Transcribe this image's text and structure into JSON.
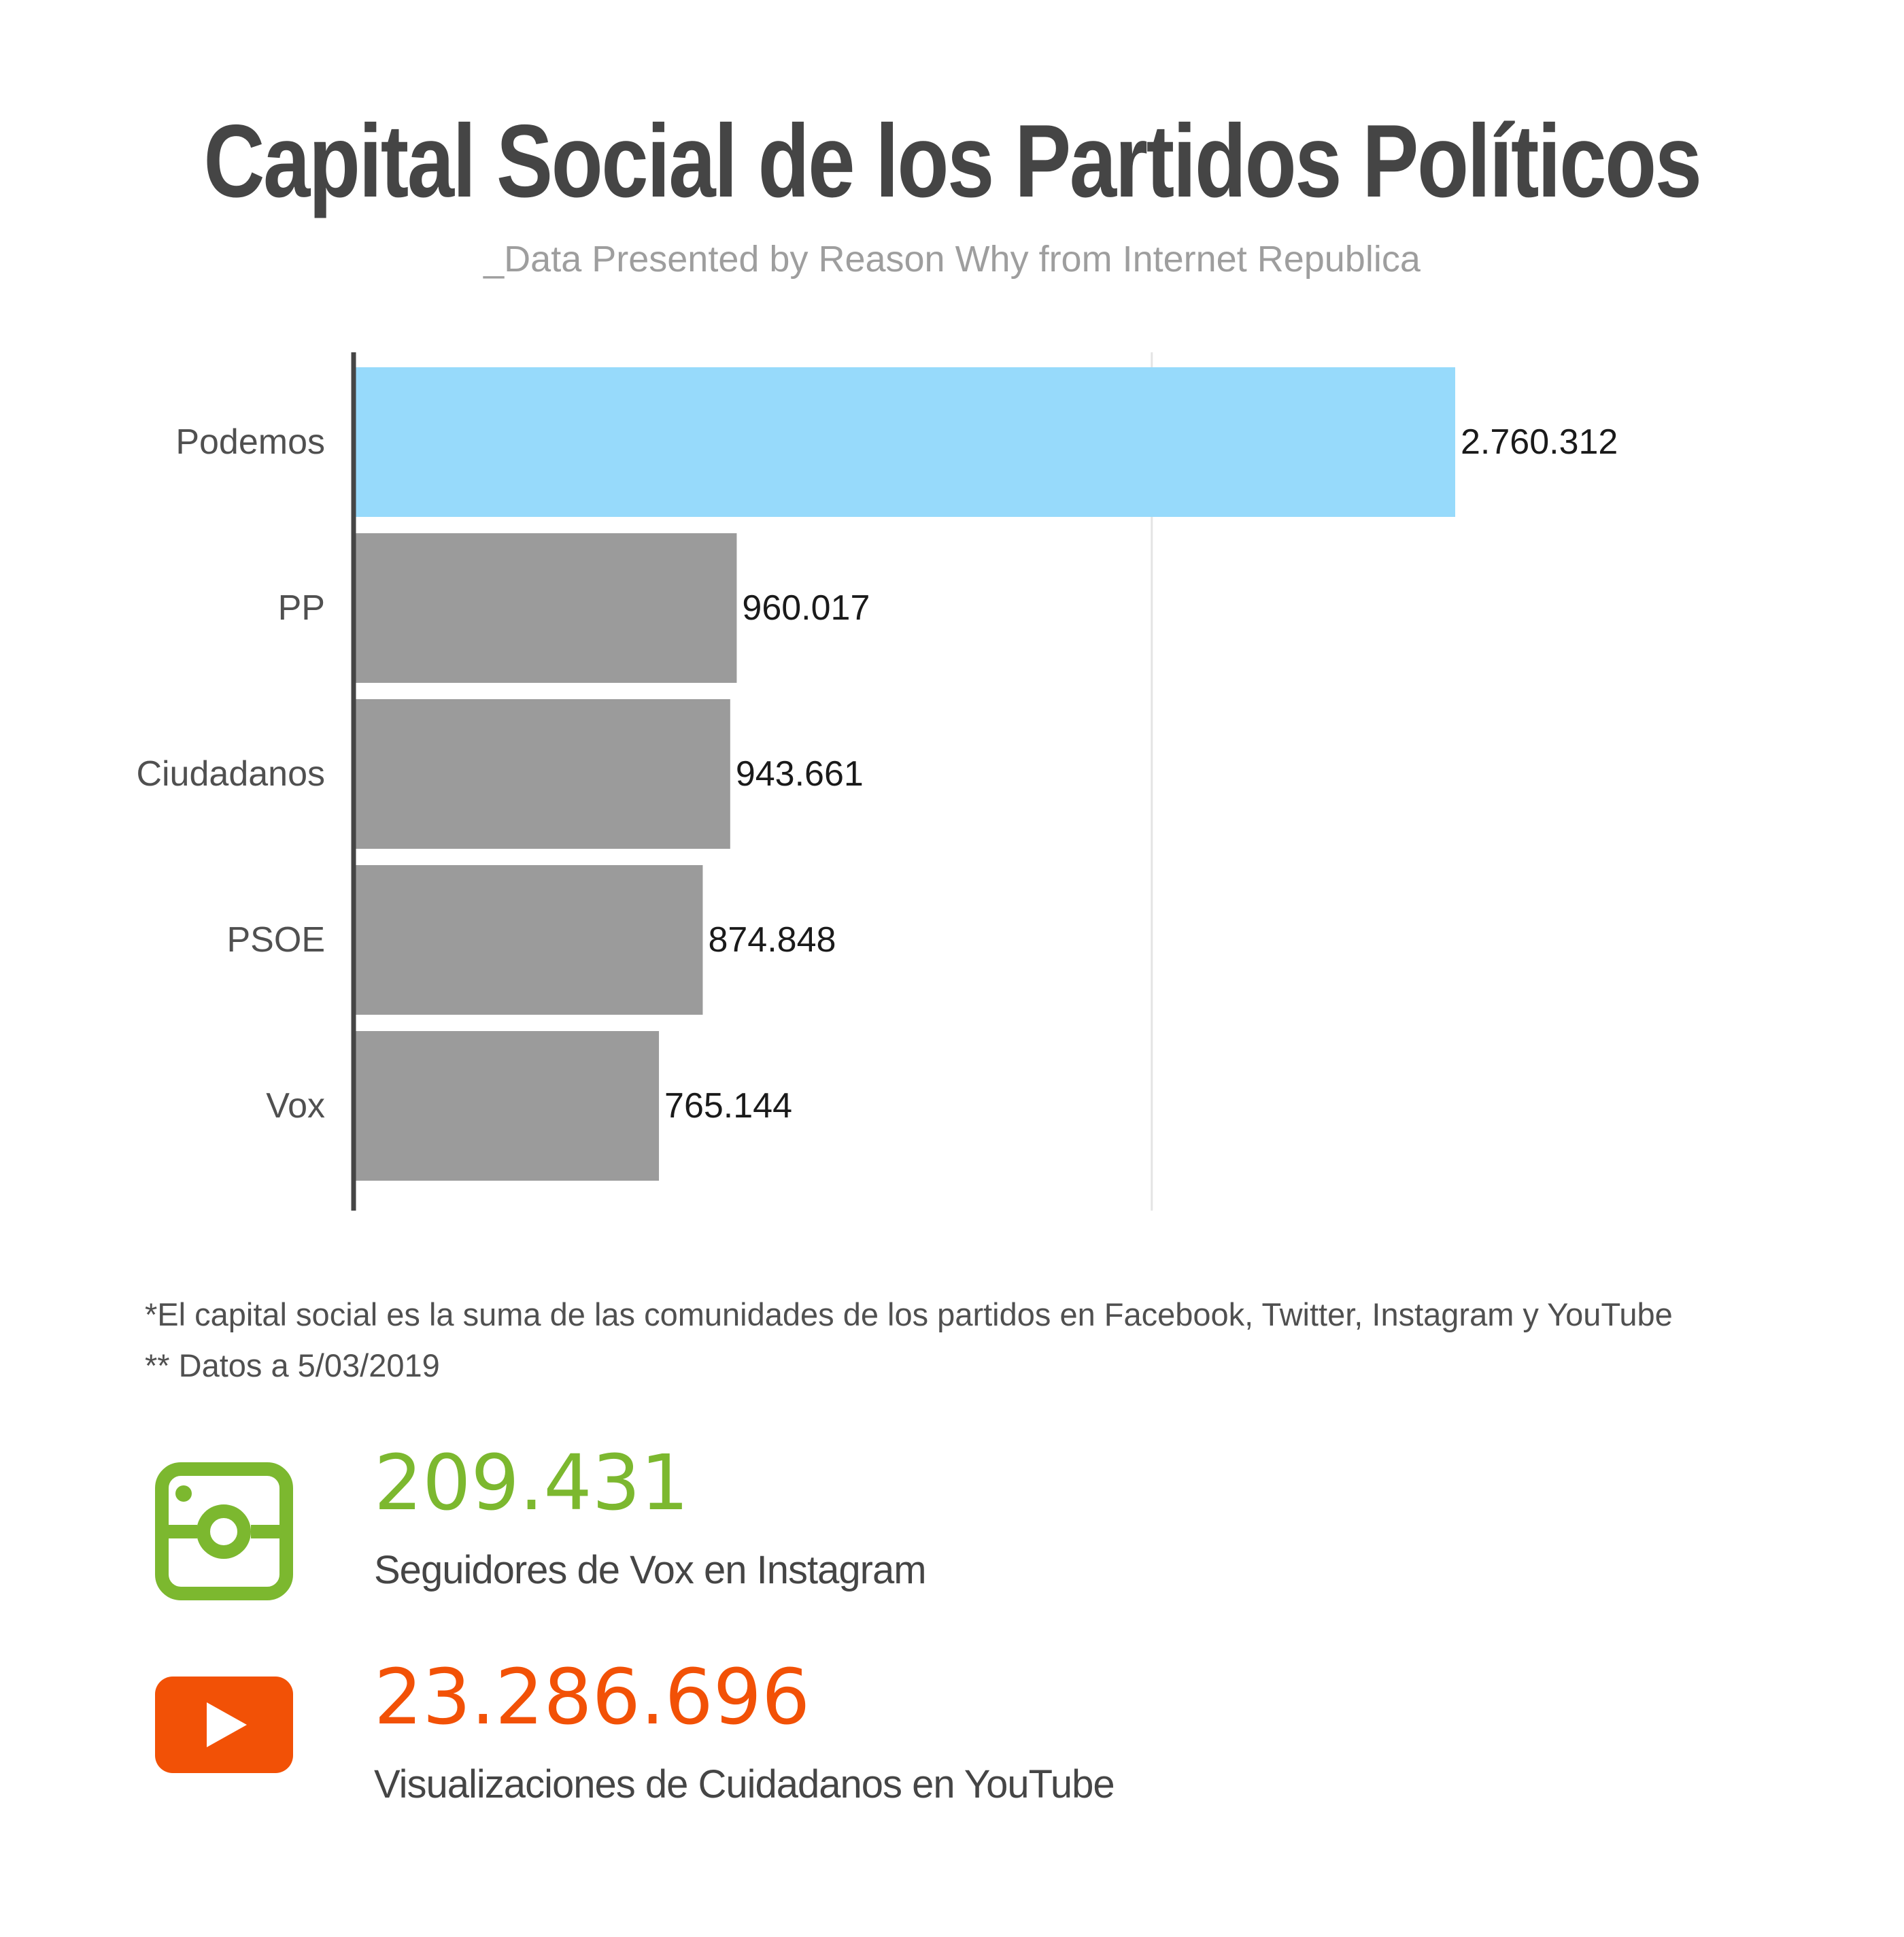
{
  "header": {
    "title": "Capital Social de los Partidos Políticos",
    "subtitle": "_Data Presented by Reason Why from Internet Republica"
  },
  "chart_data": {
    "type": "bar",
    "orientation": "horizontal",
    "categories": [
      "Podemos",
      "PP",
      "Ciudadanos",
      "PSOE",
      "Vox"
    ],
    "values": [
      2760312,
      960017,
      943661,
      874848,
      765144
    ],
    "value_labels": [
      "2.760.312",
      "960.017",
      "943.661",
      "874.848",
      "765.144"
    ],
    "colors": [
      "#97dafb",
      "#9b9b9b",
      "#9b9b9b",
      "#9b9b9b",
      "#9b9b9b"
    ],
    "xlim": [
      0,
      4000000
    ],
    "gridlines": [
      2000000
    ],
    "grid": true,
    "legend": "none"
  },
  "notes": {
    "line1": "*El capital social es la suma de las comunidades de los partidos en Facebook, Twitter, Instagram y YouTube",
    "line2": "** Datos a 5/03/2019"
  },
  "stats": {
    "instagram": {
      "value": "209.431",
      "label": "Seguidores de Vox en Instagram",
      "color": "#7cb82f",
      "icon": "instagram-icon"
    },
    "youtube": {
      "value": "23.286.696",
      "label": "Visualizaciones de Cuidadanos en YouTube",
      "color": "#f25106",
      "icon": "youtube-icon"
    }
  }
}
